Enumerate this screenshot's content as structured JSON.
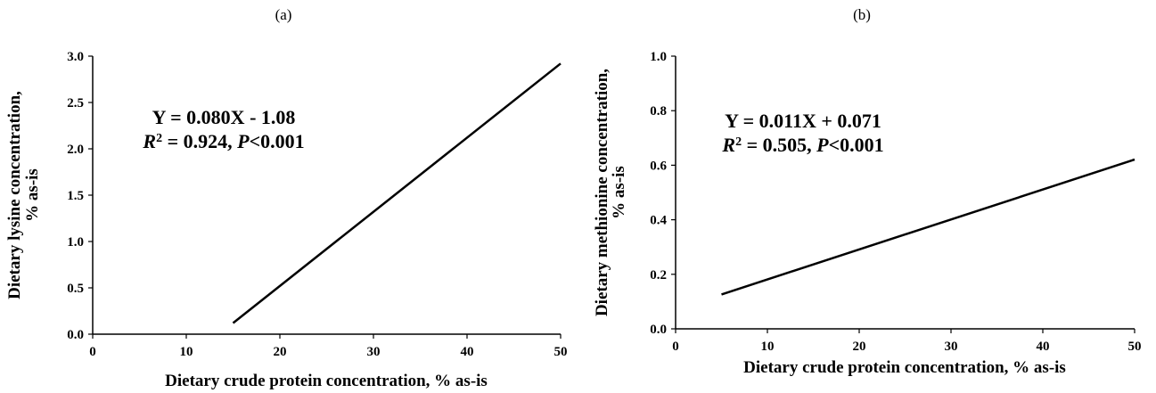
{
  "chart_data": [
    {
      "type": "line",
      "panel_label": "(a)",
      "title": "",
      "xlabel": "Dietary crude protein concentration, % as-is",
      "ylabel_line1": "Dietary lysine concentration,",
      "ylabel_line2": "% as-is",
      "xlim": [
        0,
        50
      ],
      "ylim": [
        0,
        3.0
      ],
      "xticks": [
        "0",
        "10",
        "20",
        "30",
        "40",
        "50"
      ],
      "yticks": [
        "0.0",
        "0.5",
        "1.0",
        "1.5",
        "2.0",
        "2.5",
        "3.0"
      ],
      "grid": false,
      "series": [
        {
          "x": [
            15,
            50
          ],
          "y": [
            0.12,
            2.92
          ]
        }
      ],
      "annotation": {
        "equation": "Y = 0.080X - 1.08",
        "r_symbol": "R",
        "r_sup": "2",
        "r_value": " = 0.924, ",
        "p_symbol": "P",
        "p_value": "<0.001"
      },
      "line_color": "#000000"
    },
    {
      "type": "line",
      "panel_label": "(b)",
      "title": "",
      "xlabel": "Dietary crude protein concentration, % as-is",
      "ylabel_line1": "Dietary methionine concentration,",
      "ylabel_line2": "% as-is",
      "xlim": [
        0,
        50
      ],
      "ylim": [
        0,
        1.0
      ],
      "xticks": [
        "0",
        "10",
        "20",
        "30",
        "40",
        "50"
      ],
      "yticks": [
        "0.0",
        "0.2",
        "0.4",
        "0.6",
        "0.8",
        "1.0"
      ],
      "grid": false,
      "series": [
        {
          "x": [
            5,
            50
          ],
          "y": [
            0.126,
            0.621
          ]
        }
      ],
      "annotation": {
        "equation": "Y = 0.011X + 0.071",
        "r_symbol": "R",
        "r_sup": "2",
        "r_value": " = 0.505, ",
        "p_symbol": "P",
        "p_value": "<0.001"
      },
      "line_color": "#000000"
    }
  ]
}
